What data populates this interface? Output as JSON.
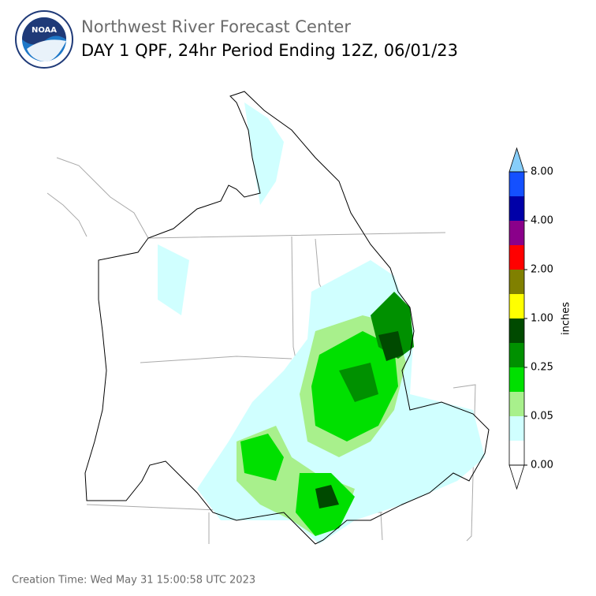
{
  "header": {
    "logo_text": "NOAA",
    "agency": "Northwest River Forecast Center",
    "title": "DAY 1 QPF, 24hr Period Ending 12Z, 06/01/23"
  },
  "colorbar": {
    "label": "inches",
    "ticks": [
      {
        "value": 8,
        "label": "8.00"
      },
      {
        "value": 4,
        "label": "4.00"
      },
      {
        "value": 2,
        "label": "2.00"
      },
      {
        "value": 1,
        "label": "1.00"
      },
      {
        "value": 0.25,
        "label": "0.25"
      },
      {
        "value": 0.05,
        "label": "0.05"
      },
      {
        "value": 0,
        "label": "0.00"
      }
    ],
    "over_color": "#87cefa",
    "colors": [
      "#1450ff",
      "#0000a8",
      "#8a008a",
      "#ff0000",
      "#808000",
      "#ffff00",
      "#004a00",
      "#009000",
      "#00e000",
      "#a8f08c",
      "#d0ffff",
      "#ffffff"
    ]
  },
  "footer": {
    "creation_time": "Creation Time: Wed May 31 15:00:58 UTC 2023"
  }
}
